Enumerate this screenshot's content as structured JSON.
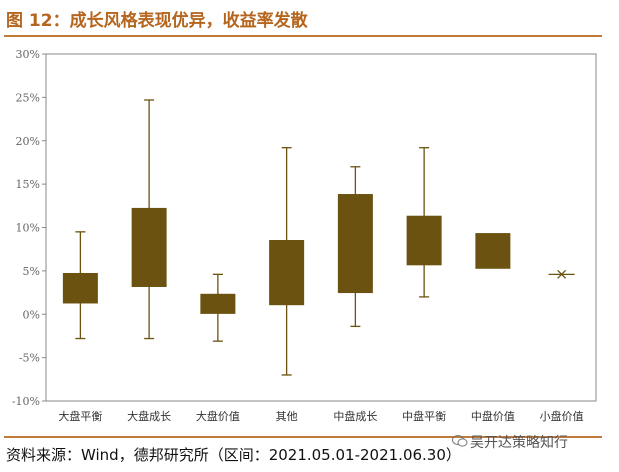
{
  "header": {
    "title": "图 12：成长风格表现优异，收益率发散"
  },
  "footer": {
    "source": "资料来源：Wind，德邦研究所（区间：2021.05.01-2021.06.30）",
    "watermark": "吴开达策略知行"
  },
  "chart_data": {
    "type": "box",
    "title": "",
    "xlabel": "",
    "ylabel": "",
    "ylim": [
      -10,
      30
    ],
    "yticks": [
      -10,
      -5,
      0,
      5,
      10,
      15,
      20,
      25,
      30
    ],
    "ytick_labels": [
      "-10%",
      "-5%",
      "0%",
      "5%",
      "10%",
      "15%",
      "20%",
      "25%",
      "30%"
    ],
    "grid": false,
    "color": "#6b5210",
    "categories": [
      "大盘平衡",
      "大盘成长",
      "大盘价值",
      "其他",
      "中盘成长",
      "中盘平衡",
      "中盘价值",
      "小盘价值"
    ],
    "boxes": [
      {
        "min": -2.8,
        "q1": 1.3,
        "q3": 4.7,
        "max": 9.5
      },
      {
        "min": -2.8,
        "q1": 3.2,
        "q3": 12.2,
        "max": 24.7
      },
      {
        "min": -3.1,
        "q1": 0.1,
        "q3": 2.3,
        "max": 4.6
      },
      {
        "min": -7.0,
        "q1": 1.1,
        "q3": 8.5,
        "max": 19.2
      },
      {
        "min": -1.4,
        "q1": 2.5,
        "q3": 13.8,
        "max": 17.0
      },
      {
        "min": 2.0,
        "q1": 5.7,
        "q3": 11.3,
        "max": 19.2
      },
      {
        "min": 5.3,
        "q1": 5.3,
        "q3": 9.3,
        "max": 9.3
      },
      {
        "min": 4.6,
        "q1": 4.6,
        "q3": 4.6,
        "max": 4.6,
        "marker": "x"
      }
    ]
  }
}
